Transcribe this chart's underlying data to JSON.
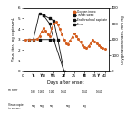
{
  "xlim": [
    0,
    42
  ],
  "ylim_left": [
    0,
    6
  ],
  "ylim_right": [
    0,
    400
  ],
  "xlabel": "Days after onset",
  "ylabel_left": "Virus titer, log copies/mL",
  "ylabel_right": "Oxygenation index, mm Hg",
  "oxygen_index": {
    "x": [
      1,
      3,
      5,
      7,
      8,
      9,
      10,
      11,
      12,
      13,
      14,
      15,
      16,
      17,
      18,
      19,
      20,
      21,
      22,
      23,
      24,
      25,
      26,
      27,
      28,
      29,
      30,
      31,
      32,
      33,
      34,
      35,
      36,
      37,
      38,
      39,
      40
    ],
    "y": [
      200,
      200,
      200,
      205,
      220,
      250,
      270,
      255,
      235,
      220,
      275,
      300,
      310,
      295,
      265,
      235,
      200,
      175,
      170,
      195,
      215,
      240,
      220,
      205,
      185,
      165,
      155,
      145,
      158,
      175,
      200,
      190,
      178,
      162,
      152,
      148,
      140
    ],
    "color": "#d45f20"
  },
  "throat_swab": {
    "x": [
      5,
      8,
      10,
      13,
      15
    ],
    "y": [
      3.0,
      5.5,
      5.3,
      4.5,
      3.0
    ],
    "color": "#111111"
  },
  "endotracheal": {
    "x": [
      10,
      13,
      15,
      17,
      20
    ],
    "y": [
      5.3,
      5.0,
      4.8,
      3.0,
      0.0
    ],
    "color": "#111111"
  },
  "fecal": {
    "x": [
      3,
      8,
      13,
      15,
      20
    ],
    "y": [
      3.0,
      3.0,
      3.0,
      3.0,
      0.0
    ],
    "color": "#111111"
  },
  "hi_arrow_days": [
    5,
    9,
    14,
    20,
    30,
    37
  ],
  "hi_titers_x": [
    5,
    9,
    14,
    20,
    30,
    37
  ],
  "hi_titers": [
    "1:80",
    "1:160",
    "1:160",
    "1:640",
    "1:640",
    "1:640"
  ],
  "neg_x": [
    5,
    9,
    14,
    22,
    30
  ],
  "background_color": "#ffffff",
  "legend_items": [
    "Oxygen index",
    "Throat swab",
    "Endotracheal aspirate",
    "Fecal"
  ],
  "legend_colors": [
    "#d45f20",
    "#111111",
    "#111111",
    "#111111"
  ],
  "legend_markers": [
    "o",
    "s",
    "s",
    "s"
  ],
  "legend_ls": [
    "-",
    "-",
    "-",
    "-"
  ]
}
